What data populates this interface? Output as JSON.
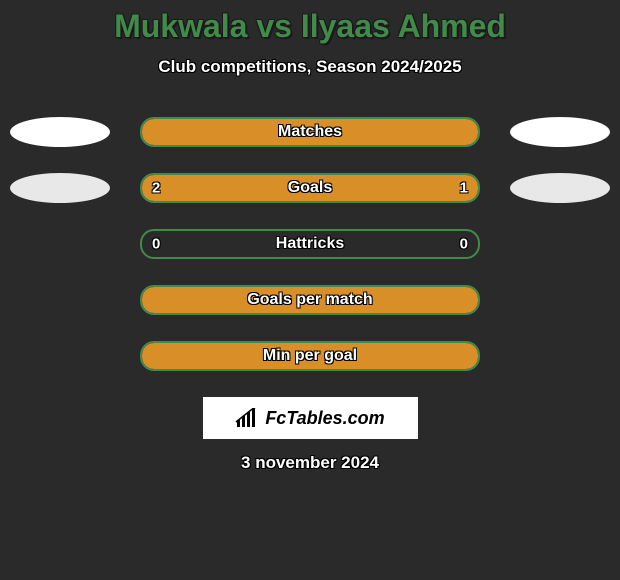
{
  "header": {
    "title": "Mukwala vs Ilyaas Ahmed",
    "subtitle": "Club competitions, Season 2024/2025"
  },
  "colors": {
    "background": "#2a2a2a",
    "border": "#418a4a",
    "bar_fill": "#d88f28",
    "ellipse_left_top": "#ffffff",
    "ellipse_right_top": "#ffffff",
    "ellipse_left_goals": "#e8e8e8",
    "ellipse_right_goals": "#e8e8e8",
    "text": "#ffffff"
  },
  "stats": [
    {
      "label": "Matches",
      "left_value": "",
      "right_value": "",
      "fill_mode": "full",
      "left_width_pct": 100,
      "right_width_pct": 0,
      "show_ellipses": true
    },
    {
      "label": "Goals",
      "left_value": "2",
      "right_value": "1",
      "fill_mode": "split",
      "left_width_pct": 67,
      "right_width_pct": 33,
      "show_ellipses": true
    },
    {
      "label": "Hattricks",
      "left_value": "0",
      "right_value": "0",
      "fill_mode": "none",
      "left_width_pct": 0,
      "right_width_pct": 0,
      "show_ellipses": false
    },
    {
      "label": "Goals per match",
      "left_value": "",
      "right_value": "",
      "fill_mode": "full",
      "left_width_pct": 100,
      "right_width_pct": 0,
      "show_ellipses": false
    },
    {
      "label": "Min per goal",
      "left_value": "",
      "right_value": "",
      "fill_mode": "full",
      "left_width_pct": 100,
      "right_width_pct": 0,
      "show_ellipses": false
    }
  ],
  "footer": {
    "logo_text": "FcTables.com",
    "date": "3 november 2024"
  },
  "ellipse_colors_per_row": [
    {
      "left": "#ffffff",
      "right": "#ffffff"
    },
    {
      "left": "#e8e8e8",
      "right": "#e8e8e8"
    }
  ]
}
